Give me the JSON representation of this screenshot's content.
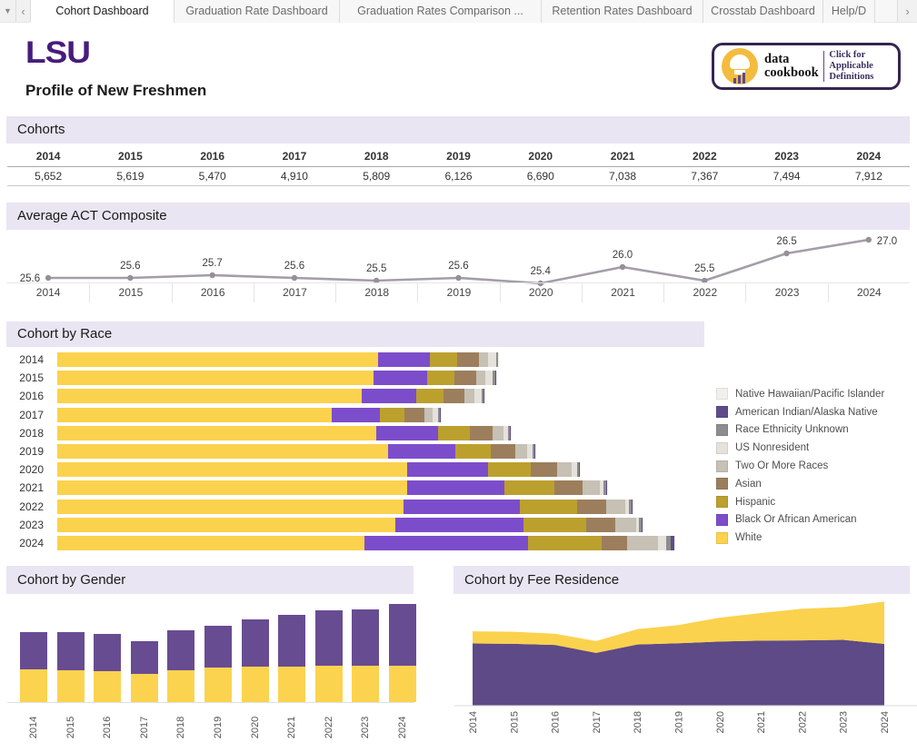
{
  "tab_bar": {
    "menu_glyph": "▼",
    "scroll_left_glyph": "‹",
    "scroll_right_glyph": "›",
    "tabs": [
      {
        "label": "Cohort Dashboard",
        "active": true
      },
      {
        "label": "Graduation Rate Dashboard",
        "active": false
      },
      {
        "label": "Graduation Rates Comparison ...",
        "active": false
      },
      {
        "label": "Retention Rates Dashboard",
        "active": false
      },
      {
        "label": "Crosstab Dashboard",
        "active": false
      },
      {
        "label": "Help/D",
        "active": false
      }
    ]
  },
  "header": {
    "logo_text": "LSU",
    "logo_color": "#461D7C",
    "title": "Profile of New Freshmen",
    "cookbook": {
      "brand1": "data",
      "brand2": "cookbook",
      "cta1": "Click for Applicable",
      "cta2": "Definitions"
    }
  },
  "sections": {
    "cohorts": "Cohorts",
    "act": "Average ACT Composite",
    "race": "Cohort by Race",
    "gender": "Cohort by Gender",
    "fee": "Cohort by Fee Residence"
  },
  "colors": {
    "band_background": "#E9E5F2",
    "act_line": "#A49DA8",
    "act_marker": "#968E9B",
    "axis_text": "#454545",
    "label_text": "#333333"
  },
  "chart_data": [
    {
      "id": "cohorts_table",
      "type": "table",
      "title": "Cohorts",
      "columns": [
        "2014",
        "2015",
        "2016",
        "2017",
        "2018",
        "2019",
        "2020",
        "2021",
        "2022",
        "2023",
        "2024"
      ],
      "rows": [
        [
          "5,652",
          "5,619",
          "5,470",
          "4,910",
          "5,809",
          "6,126",
          "6,690",
          "7,038",
          "7,367",
          "7,494",
          "7,912"
        ]
      ]
    },
    {
      "id": "act",
      "type": "line",
      "title": "Average ACT Composite",
      "x": [
        "2014",
        "2015",
        "2016",
        "2017",
        "2018",
        "2019",
        "2020",
        "2021",
        "2022",
        "2023",
        "2024"
      ],
      "values": [
        25.6,
        25.6,
        25.7,
        25.6,
        25.5,
        25.6,
        25.4,
        26.0,
        25.5,
        26.5,
        27.0
      ],
      "point_labels": [
        "25.6",
        "25.6",
        "25.7",
        "25.6",
        "25.5",
        "25.6",
        "25.4",
        "26.0",
        "25.5",
        "26.5",
        "27.0"
      ],
      "ylim": [
        25.2,
        27.2
      ],
      "grid": false,
      "line_color": "#A49DA8"
    },
    {
      "id": "race",
      "type": "bar",
      "orientation": "horizontal",
      "stacked": true,
      "title": "Cohort by Race",
      "categories": [
        "2014",
        "2015",
        "2016",
        "2017",
        "2018",
        "2019",
        "2020",
        "2021",
        "2022",
        "2023",
        "2024"
      ],
      "legend_position": "right",
      "legend_order_top_to_bottom": [
        "Native Hawaiian/Pacific Islander",
        "American Indian/Alaska Native",
        "Race Ethnicity Unknown",
        "US Nonresident",
        "Two Or More Races",
        "Asian",
        "Hispanic",
        "Black Or African American",
        "White"
      ],
      "series": [
        {
          "name": "White",
          "color": "#FBD24D",
          "values": [
            4103,
            4045,
            3900,
            3510,
            4080,
            4230,
            4480,
            4480,
            4430,
            4330,
            3930
          ]
        },
        {
          "name": "Black Or African American",
          "color": "#7C4DCB",
          "values": [
            673,
            690,
            690,
            620,
            800,
            870,
            1040,
            1250,
            1490,
            1640,
            2100
          ]
        },
        {
          "name": "Hispanic",
          "color": "#BCA02E",
          "values": [
            345,
            350,
            350,
            320,
            400,
            450,
            540,
            630,
            730,
            800,
            940
          ]
        },
        {
          "name": "Asian",
          "color": "#9C7E5D",
          "values": [
            281,
            278,
            275,
            250,
            290,
            310,
            340,
            370,
            375,
            370,
            325
          ]
        },
        {
          "name": "Two Or More Races",
          "color": "#C6C0B5",
          "values": [
            117,
            120,
            125,
            110,
            140,
            160,
            185,
            215,
            250,
            270,
            395
          ]
        },
        {
          "name": "US Nonresident",
          "color": "#E5E2DC",
          "values": [
            100,
            95,
            90,
            65,
            60,
            65,
            65,
            50,
            48,
            40,
            105
          ]
        },
        {
          "name": "Race Ethnicity Unknown",
          "color": "#8D8D8D",
          "values": [
            20,
            28,
            27,
            23,
            26,
            28,
            27,
            28,
            29,
            29,
            58
          ]
        },
        {
          "name": "American Indian/Alaska Native",
          "color": "#5F4B8B",
          "values": [
            10,
            10,
            10,
            9,
            10,
            10,
            10,
            11,
            11,
            11,
            50
          ]
        },
        {
          "name": "Native Hawaiian/Pacific Islander",
          "color": "#F2F0ED",
          "values": [
            3,
            3,
            3,
            3,
            3,
            3,
            3,
            4,
            4,
            4,
            9
          ]
        }
      ]
    },
    {
      "id": "gender",
      "type": "bar",
      "orientation": "vertical",
      "stacked": true,
      "title": "Cohort by Gender",
      "note": "no legend shown; series named by segment color",
      "categories": [
        "2014",
        "2015",
        "2016",
        "2017",
        "2018",
        "2019",
        "2020",
        "2021",
        "2022",
        "2023",
        "2024"
      ],
      "series": [
        {
          "name": "yellow-bottom-segment",
          "color": "#FCD34F",
          "values": [
            2628,
            2555,
            2482,
            2263,
            2591,
            2774,
            2847,
            2883,
            2920,
            2920,
            2920
          ]
        },
        {
          "name": "purple-top-segment",
          "color": "#684C92",
          "values": [
            3024,
            3064,
            2988,
            2647,
            3218,
            3352,
            3843,
            4155,
            4447,
            4574,
            4992
          ]
        }
      ]
    },
    {
      "id": "fee",
      "type": "area",
      "stacked": true,
      "title": "Cohort by Fee Residence",
      "note": "no legend shown; series named by segment color",
      "x": [
        "2014",
        "2015",
        "2016",
        "2017",
        "2018",
        "2019",
        "2020",
        "2021",
        "2022",
        "2023",
        "2024"
      ],
      "series": [
        {
          "name": "purple-bottom-area",
          "color": "#5E4A86",
          "values": [
            4730,
            4700,
            4620,
            4010,
            4650,
            4740,
            4870,
            4940,
            4960,
            5000,
            4690
          ]
        },
        {
          "name": "yellow-top-area",
          "color": "#FBD24D",
          "values": [
            922,
            919,
            850,
            900,
            1159,
            1386,
            1820,
            2098,
            2407,
            2494,
            3222
          ]
        }
      ]
    }
  ]
}
